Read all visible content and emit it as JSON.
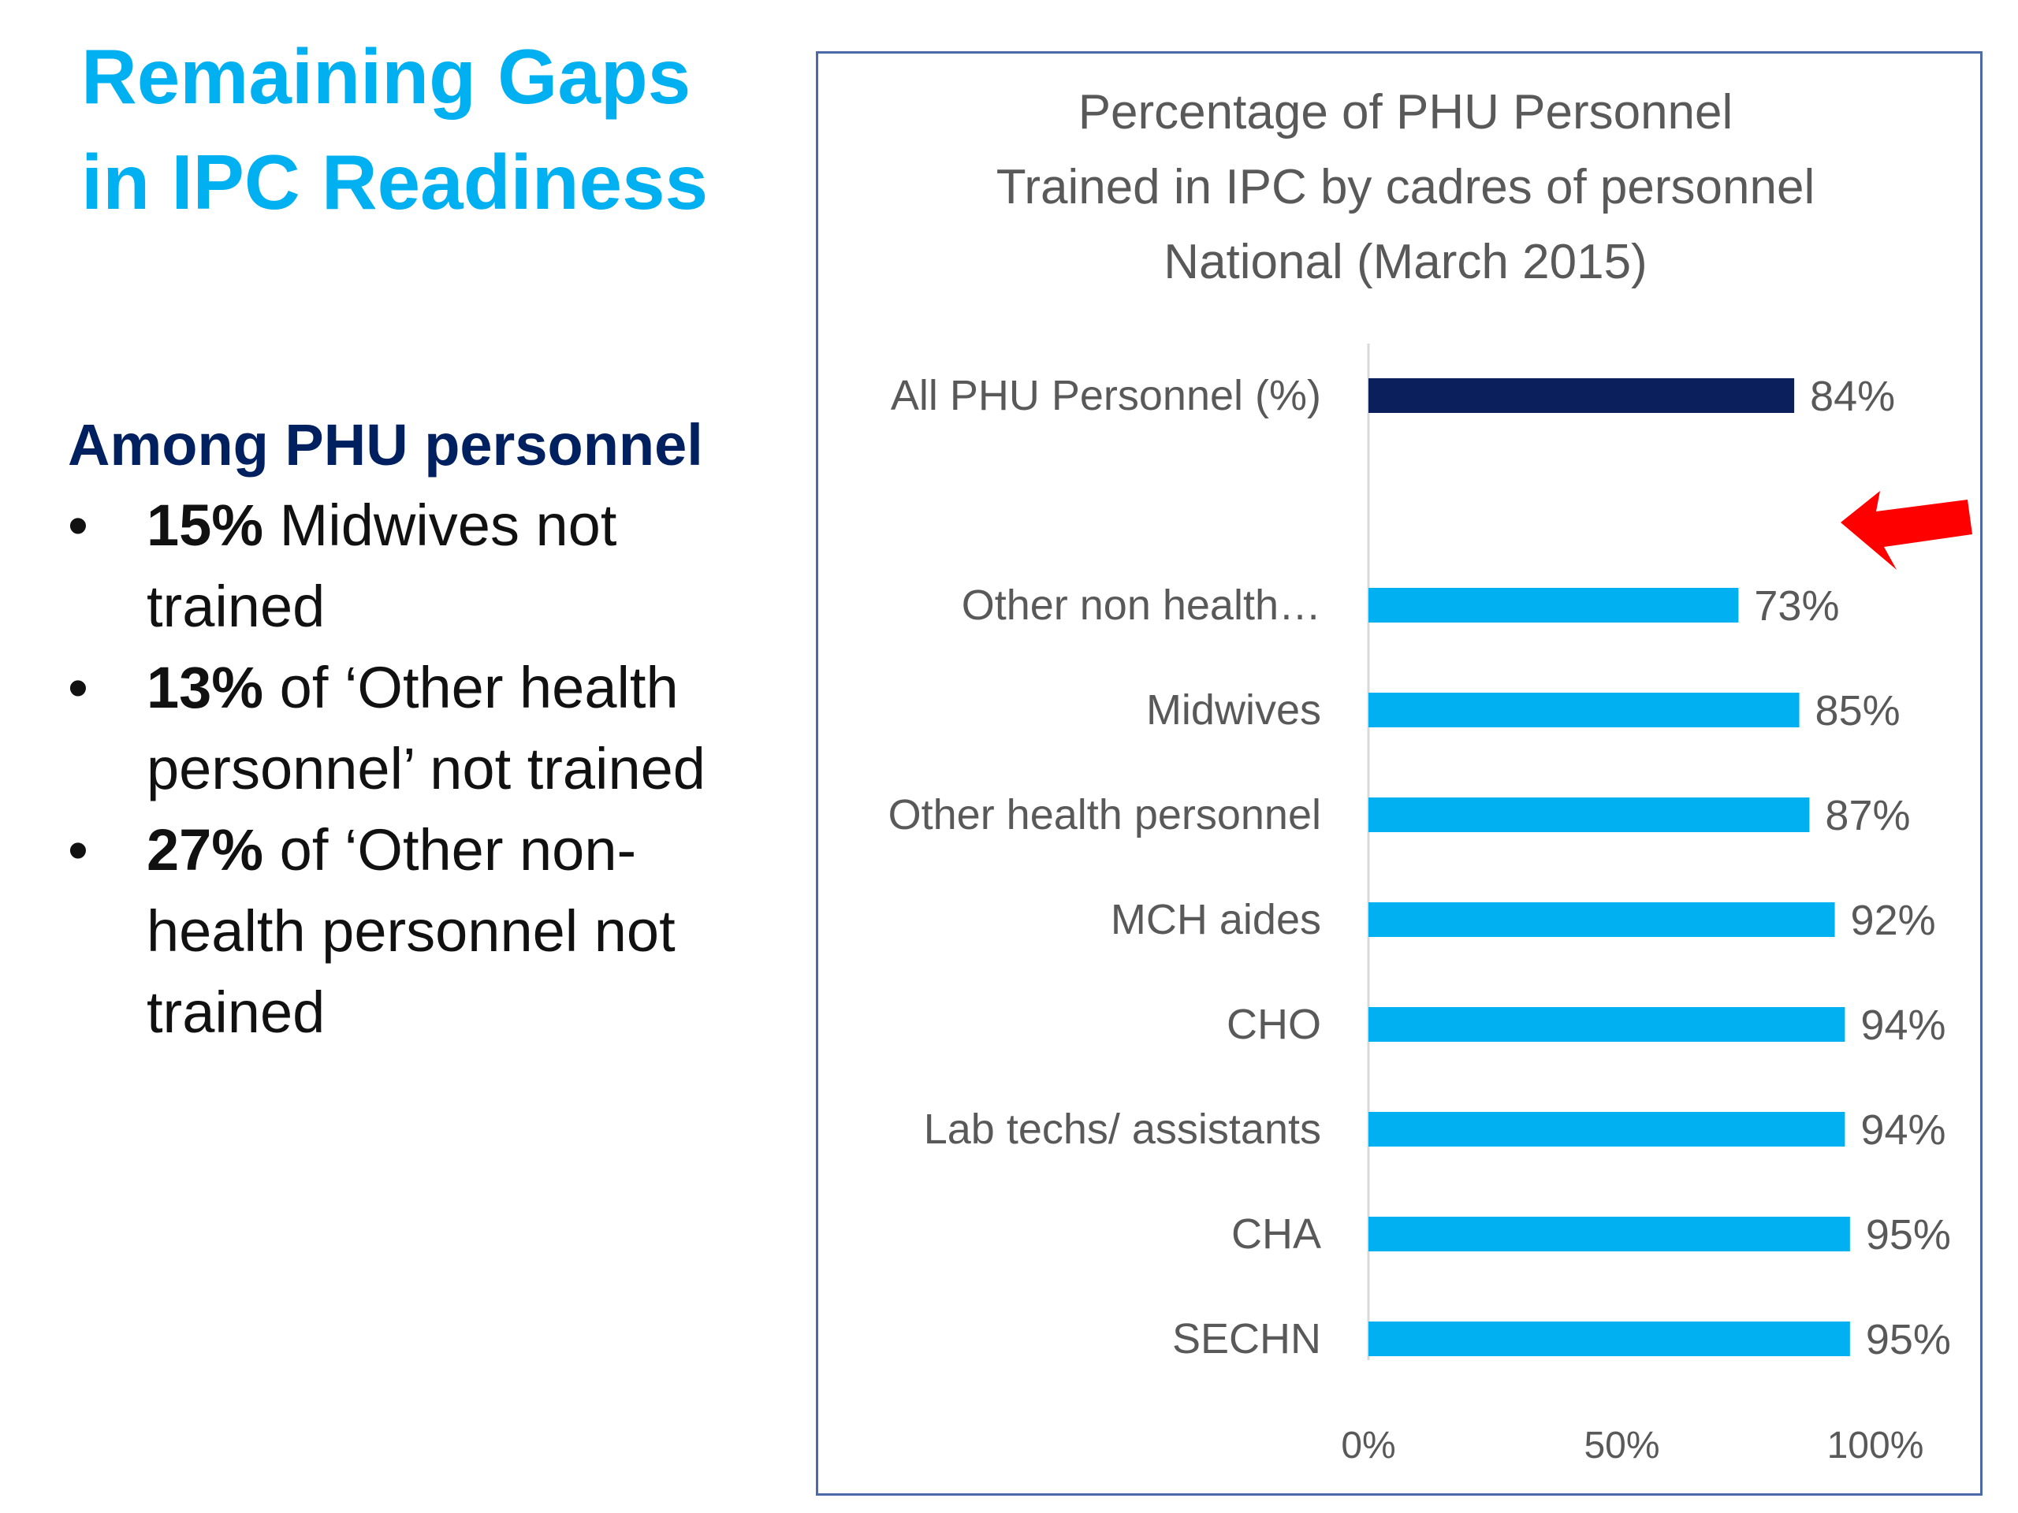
{
  "slide": {
    "title_lines": [
      "Remaining Gaps",
      "in IPC Readiness"
    ],
    "subheading": "Among PHU personnel",
    "bullets": [
      {
        "bold": "15%",
        "rest": " Midwives not trained"
      },
      {
        "bold": "13%",
        "rest": " of ‘Other health personnel’ not trained"
      },
      {
        "bold": "27%",
        "rest": " of ‘Other non-health personnel not trained"
      }
    ]
  },
  "chart_data": {
    "type": "bar",
    "orientation": "horizontal",
    "title_lines": [
      "Percentage of PHU Personnel",
      "Trained in IPC by cadres of personnel",
      "National (March 2015)"
    ],
    "categories": [
      "All PHU Personnel (%)",
      "Other non health…",
      "Midwives",
      "Other health personnel",
      "MCH aides",
      "CHO",
      "Lab techs/ assistants",
      "CHA",
      "SECHN"
    ],
    "values": [
      84,
      73,
      85,
      87,
      92,
      94,
      94,
      95,
      95
    ],
    "data_labels": [
      "84%",
      "73%",
      "85%",
      "87%",
      "92%",
      "94%",
      "94%",
      "95%",
      "95%"
    ],
    "bar_colors": [
      "#0b1f5c",
      "#00b0f0",
      "#00b0f0",
      "#00b0f0",
      "#00b0f0",
      "#00b0f0",
      "#00b0f0",
      "#00b0f0",
      "#00b0f0"
    ],
    "xlim": [
      0,
      100
    ],
    "xticks": [
      0,
      50,
      100
    ],
    "xtick_labels": [
      "0%",
      "50%",
      "100%"
    ],
    "grid": false,
    "legend": "none",
    "annotation": {
      "type": "arrow",
      "color": "#ff0000",
      "points_to": "Other non health…"
    }
  },
  "colors": {
    "title": "#00b0f0",
    "subheading": "#002060",
    "text": "#111111",
    "chart_text": "#595959",
    "frame": "#4a6ba8"
  }
}
